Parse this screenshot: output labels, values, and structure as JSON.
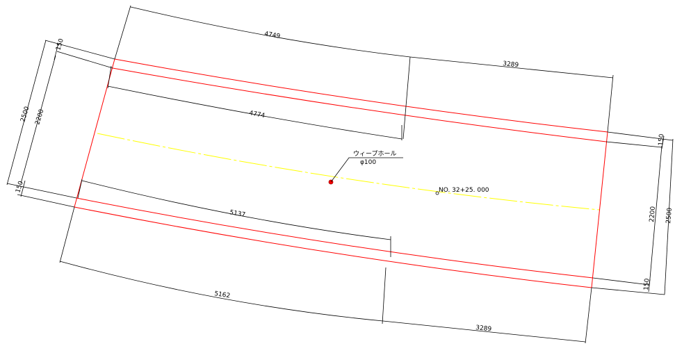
{
  "dimensions": {
    "top_left_length": "4749",
    "top_right_length": "3289",
    "inner_top_length": "4774",
    "inner_bottom_length": "5137",
    "bottom_left_length": "5162",
    "bottom_right_length": "3289",
    "left_total_width": "2500",
    "left_inner_width": "2200",
    "left_top_offset": "150",
    "left_bottom_offset": "150",
    "right_total_width": "2500",
    "right_inner_width": "2200",
    "right_top_offset": "150",
    "right_bottom_offset": "150"
  },
  "annotations": {
    "weep_hole_label": "ウィープホール",
    "weep_hole_size": "φ100",
    "station_label": "NO. 32+25. 000"
  },
  "colors": {
    "outline": "#ff0000",
    "centerline": "#ffff00",
    "dimension": "#000000",
    "weep_hole": "#ff0000"
  }
}
